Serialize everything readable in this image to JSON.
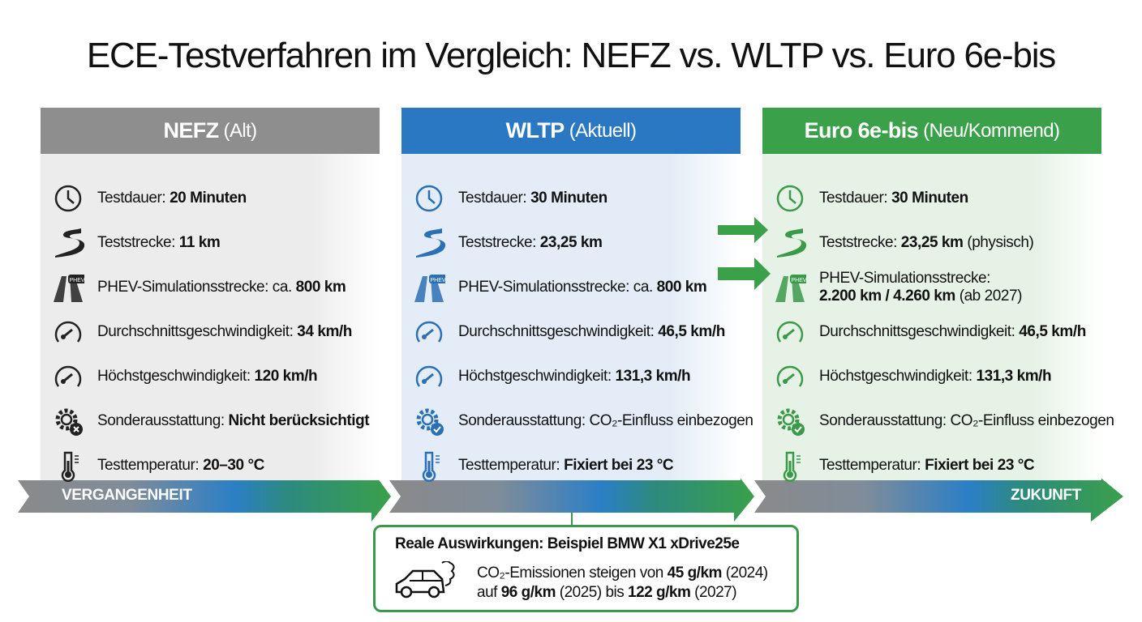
{
  "title": "ECE-Testverfahren im Vergleich: NEFZ vs. WLTP vs. Euro 6e-bis",
  "colors": {
    "nefz": "#8e8e8e",
    "wltp": "#2b78c2",
    "euro": "#3aa04a"
  },
  "columns": [
    {
      "name": "NEFZ",
      "qualifier": "(Alt)",
      "rows": [
        {
          "icon": "clock-icon",
          "label": "Testdauer: ",
          "value": "20 Minuten",
          "bold": true
        },
        {
          "icon": "road-icon",
          "label": "Teststrecke: ",
          "value": "11 km",
          "bold": true
        },
        {
          "icon": "phev-road-icon",
          "label": "PHEV-Simulationsstrecke: ca. ",
          "value": "800 km",
          "bold": true
        },
        {
          "icon": "speedometer-icon",
          "label": "Durchschnittsgeschwindigkeit: ",
          "value": "34 km/h",
          "bold": true
        },
        {
          "icon": "speedometer-icon",
          "label": "Höchstgeschwindigkeit: ",
          "value": "120 km/h",
          "bold": true
        },
        {
          "icon": "gear-x-icon",
          "label": "Sonderausstattung: ",
          "value": "Nicht berücksichtigt",
          "bold": true
        },
        {
          "icon": "thermometer-icon",
          "label": "Testtemperatur: ",
          "value": "20–30 °C",
          "bold": true
        }
      ]
    },
    {
      "name": "WLTP",
      "qualifier": "(Aktuell)",
      "rows": [
        {
          "icon": "clock-icon",
          "label": "Testdauer: ",
          "value": "30 Minuten",
          "bold": true
        },
        {
          "icon": "road-icon",
          "label": "Teststrecke: ",
          "value": "23,25 km",
          "bold": true
        },
        {
          "icon": "phev-road-icon",
          "label": "PHEV-Simulationsstrecke: ca. ",
          "value": "800 km",
          "bold": true
        },
        {
          "icon": "speedometer-icon",
          "label": "Durchschnittsgeschwindigkeit: ",
          "value": "46,5 km/h",
          "bold": true
        },
        {
          "icon": "speedometer-icon",
          "label": "Höchstgeschwindigkeit: ",
          "value": "131,3 km/h",
          "bold": true
        },
        {
          "icon": "gear-check-icon",
          "label": "Sonderausstattung: ",
          "value": "CO₂-Einfluss einbezogen",
          "bold": false
        },
        {
          "icon": "thermometer-icon",
          "label": "Testtemperatur: ",
          "value": "Fixiert bei 23 °C",
          "bold": true
        }
      ]
    },
    {
      "name": "Euro 6e-bis",
      "qualifier": "(Neu/Kommend)",
      "rows": [
        {
          "icon": "clock-icon",
          "label": "Testdauer: ",
          "value": "30 Minuten",
          "bold": true
        },
        {
          "icon": "road-icon",
          "label": "Teststrecke: ",
          "value": "23,25 km",
          "bold": true,
          "suffix": " (physisch)"
        },
        {
          "icon": "phev-road-icon",
          "label": "PHEV-Simulationsstrecke:",
          "value": "2.200 km / 4.260 km",
          "bold": true,
          "suffix": " (ab 2027)",
          "wrap": true
        },
        {
          "icon": "speedometer-icon",
          "label": "Durchschnittsgeschwindigkeit: ",
          "value": "46,5 km/h",
          "bold": true
        },
        {
          "icon": "speedometer-icon",
          "label": "Höchstgeschwindigkeit: ",
          "value": "131,3 km/h",
          "bold": true
        },
        {
          "icon": "gear-check-icon",
          "label": "Sonderausstattung: ",
          "value": "CO₂-Einfluss einbezogen",
          "bold": false
        },
        {
          "icon": "thermometer-icon",
          "label": "Testtemperatur: ",
          "value": "Fixiert bei 23 °C",
          "bold": true
        }
      ]
    }
  ],
  "timeline": {
    "past": "VERGANGENHEIT",
    "future": "ZUKUNFT"
  },
  "impact": {
    "title": "Reale Auswirkungen: Beispiel BMW X1 xDrive25e",
    "line1": {
      "a": "CO₂-Emissionen steigen von ",
      "b": "45 g/km",
      "c": " (2024)"
    },
    "line2": {
      "a": "auf ",
      "b": "96 g/km",
      "c": " (2025) bis ",
      "d": "122 g/km",
      "e": " (2027)"
    }
  }
}
